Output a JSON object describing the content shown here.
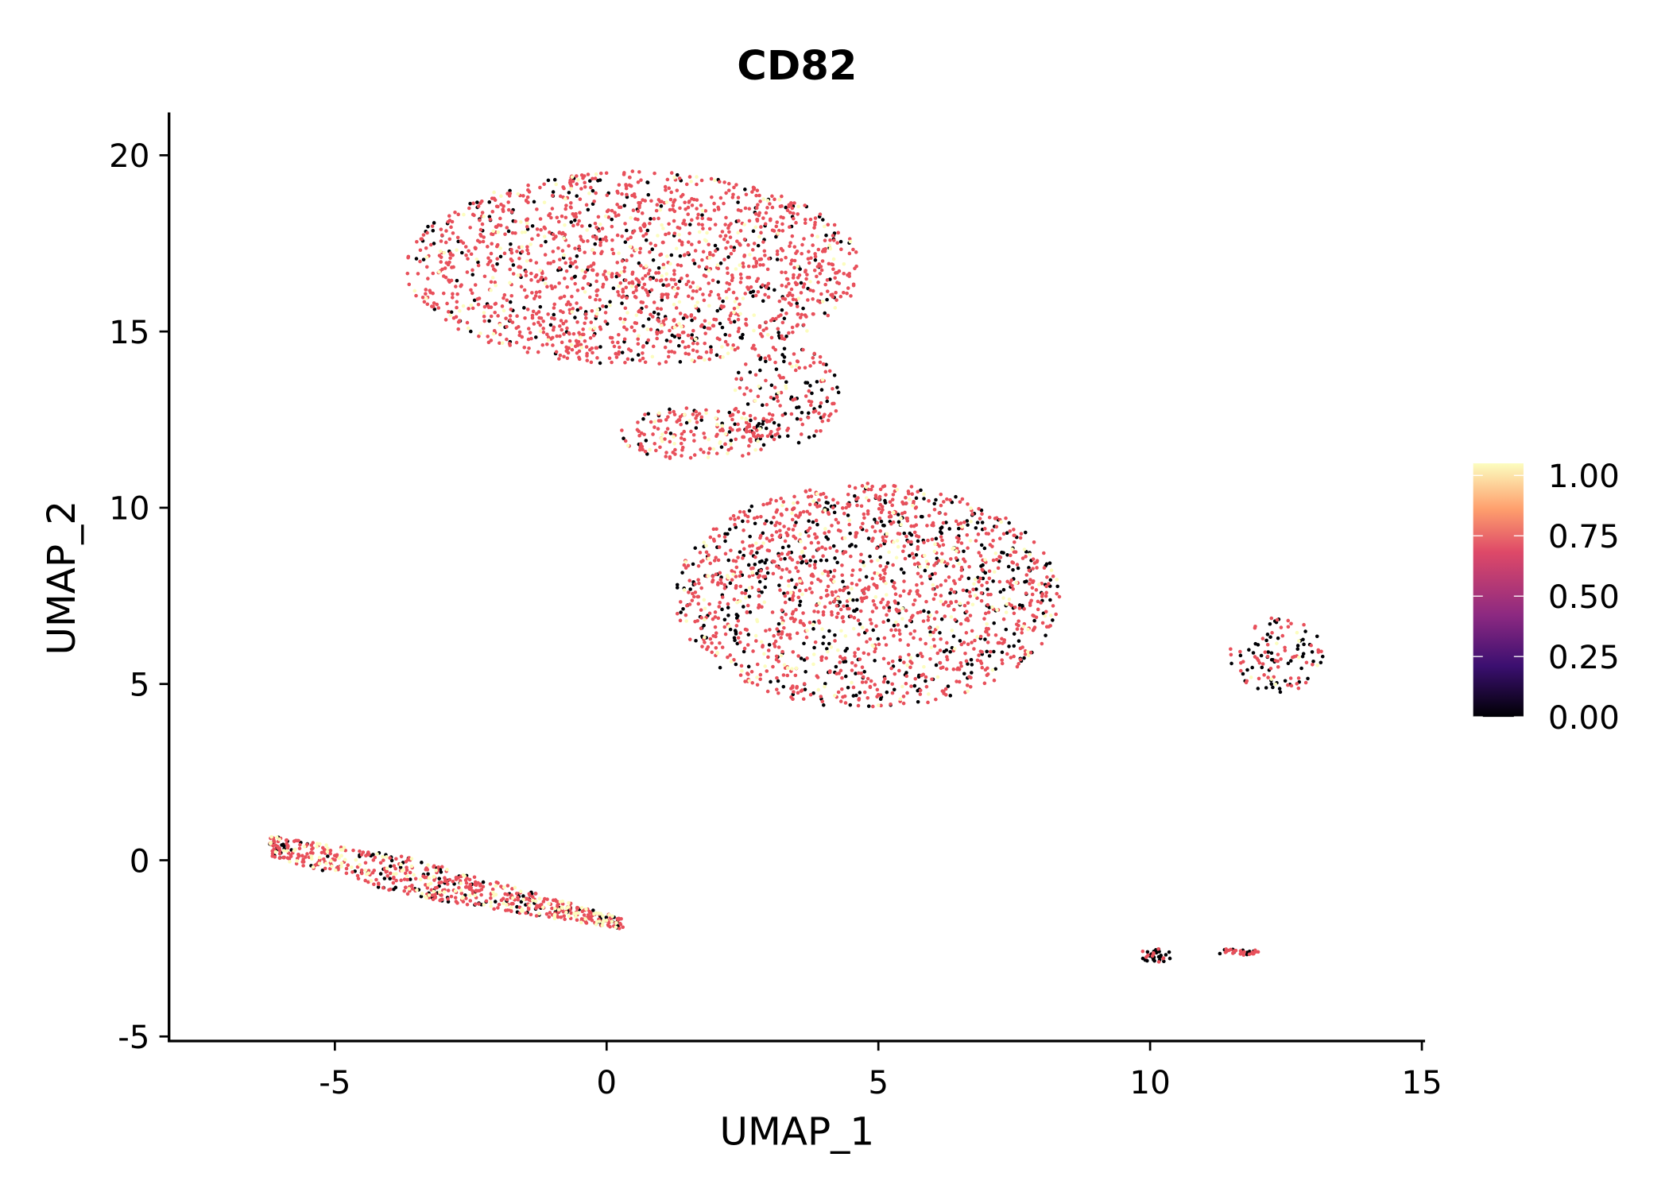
{
  "chart_data": {
    "type": "scatter",
    "title": "CD82",
    "xlabel": "UMAP_1",
    "ylabel": "UMAP_2",
    "xlim": [
      -8.1,
      15.1
    ],
    "ylim": [
      -5.1,
      21.2
    ],
    "xticks": [
      -5,
      0,
      5,
      10,
      15
    ],
    "xtick_labels": [
      "-5",
      "0",
      "5",
      "10",
      "15"
    ],
    "yticks": [
      -5,
      0,
      5,
      10,
      15,
      20
    ],
    "ytick_labels": [
      "-5",
      "0",
      "5",
      "10",
      "15",
      "20"
    ],
    "grid": false,
    "colorbar": {
      "position": "right",
      "range": [
        0,
        1.05
      ],
      "ticks": [
        0,
        0.25,
        0.5,
        0.75,
        1.0
      ],
      "tick_labels": [
        "0.00",
        "0.25",
        "0.50",
        "0.75",
        "1.00"
      ],
      "colormap": [
        "#000004",
        "#3b0f70",
        "#8c2981",
        "#de4968",
        "#fe9f6d",
        "#fcfdbf"
      ]
    },
    "value_colors": {
      "zero": "#000004",
      "mid": "#e8505b",
      "high": "#fcfdbf"
    },
    "clusters": [
      {
        "name": "top-blob",
        "center": [
          0.5,
          16.8
        ],
        "radius": [
          4.2,
          2.75
        ],
        "n": 1700,
        "frac_zero": 0.14,
        "frac_high": 0.1
      },
      {
        "name": "bridge",
        "center": [
          1.7,
          12.1
        ],
        "radius": [
          1.5,
          0.75
        ],
        "n": 200,
        "frac_zero": 0.15,
        "frac_high": 0.12
      },
      {
        "name": "bridge-2",
        "center": [
          3.3,
          13.2
        ],
        "radius": [
          1.0,
          1.4
        ],
        "n": 160,
        "frac_zero": 0.3,
        "frac_high": 0.05
      },
      {
        "name": "middle-blob",
        "center": [
          4.8,
          7.5
        ],
        "radius": [
          3.55,
          3.2
        ],
        "n": 1700,
        "frac_zero": 0.25,
        "frac_high": 0.1
      },
      {
        "name": "bottom-left-band",
        "start": [
          -6.2,
          0.4
        ],
        "end": [
          0.3,
          -1.8
        ],
        "width": 1.1,
        "n": 700,
        "frac_zero": 0.18,
        "frac_high": 0.2
      },
      {
        "name": "right-ring",
        "center": [
          12.3,
          5.8
        ],
        "radius": [
          0.9,
          1.1
        ],
        "n": 120,
        "frac_zero": 0.45,
        "frac_high": 0.08
      },
      {
        "name": "small-a",
        "center": [
          10.1,
          -2.7
        ],
        "radius": [
          0.3,
          0.2
        ],
        "n": 35,
        "frac_zero": 0.6,
        "frac_high": 0.0
      },
      {
        "name": "small-b",
        "center": [
          11.6,
          -2.6
        ],
        "radius": [
          0.4,
          0.1
        ],
        "n": 30,
        "frac_zero": 0.2,
        "frac_high": 0.0
      }
    ]
  }
}
